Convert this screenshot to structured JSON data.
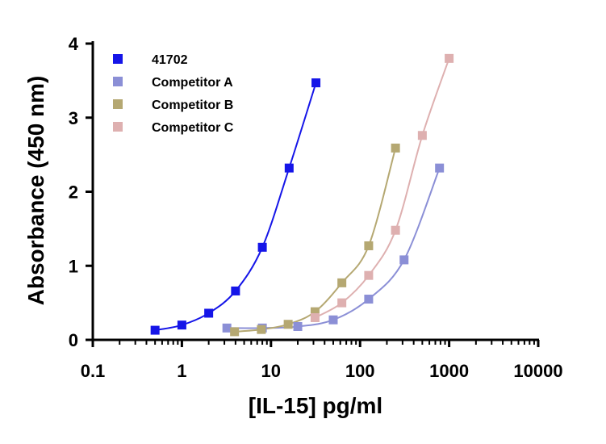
{
  "chart_data": {
    "type": "scatter",
    "title": "",
    "xlabel": "[IL-15] pg/ml",
    "ylabel": "Absorbance (450 nm)",
    "x_scale": "log",
    "xlim": [
      0.1,
      10000
    ],
    "ylim": [
      0,
      4
    ],
    "x_ticks": [
      "0.1",
      "1",
      "10",
      "100",
      "1000",
      "10000"
    ],
    "x_tick_values": [
      0.1,
      1,
      10,
      100,
      1000,
      10000
    ],
    "y_ticks": [
      "0",
      "1",
      "2",
      "3",
      "4"
    ],
    "y_tick_values": [
      0,
      1,
      2,
      3,
      4
    ],
    "grid": false,
    "legend_position": "top-left",
    "fit_curves": true,
    "series": [
      {
        "name": "41702",
        "color": "#1515e8",
        "x": [
          0.5,
          1,
          2,
          4,
          8,
          16,
          32
        ],
        "y": [
          0.13,
          0.2,
          0.36,
          0.66,
          1.25,
          2.32,
          3.47
        ]
      },
      {
        "name": "Competitor A",
        "color": "#8b8fd6",
        "x": [
          3.2,
          8,
          20,
          50,
          125,
          312,
          780
        ],
        "y": [
          0.16,
          0.16,
          0.18,
          0.27,
          0.55,
          1.08,
          2.32
        ]
      },
      {
        "name": "Competitor B",
        "color": "#b5a872",
        "x": [
          3.9,
          7.8,
          15.6,
          31.25,
          62.5,
          125,
          250
        ],
        "y": [
          0.11,
          0.14,
          0.21,
          0.38,
          0.77,
          1.27,
          2.59
        ]
      },
      {
        "name": "Competitor C",
        "color": "#deb0b0",
        "x": [
          31.25,
          62.5,
          125,
          250,
          500,
          1000
        ],
        "y": [
          0.3,
          0.5,
          0.87,
          1.48,
          2.76,
          3.8
        ]
      }
    ]
  }
}
